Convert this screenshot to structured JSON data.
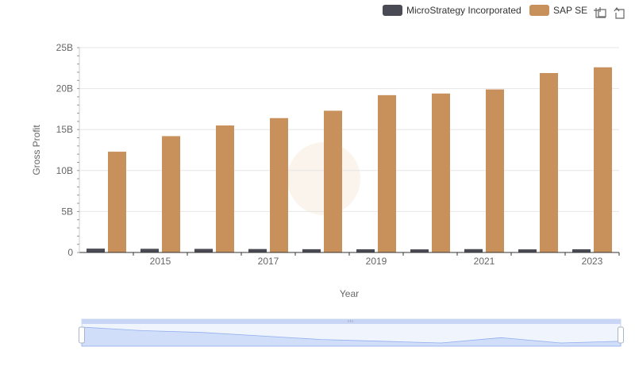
{
  "chart_data": {
    "type": "bar",
    "categories": [
      "2014",
      "2015",
      "2016",
      "2017",
      "2018",
      "2019",
      "2020",
      "2021",
      "2022",
      "2023"
    ],
    "x_tick_labels": [
      "2015",
      "2017",
      "2019",
      "2021",
      "2023"
    ],
    "xlabel": "Year",
    "ylabel": "Gross Profit",
    "ylim": [
      0,
      25
    ],
    "y_ticks": [
      0,
      5,
      10,
      15,
      20,
      25
    ],
    "y_tick_labels": [
      "0",
      "5B",
      "10B",
      "15B",
      "20B",
      "25B"
    ],
    "y_unit": "billions",
    "grid": true,
    "legend_position": "top-right",
    "series": [
      {
        "name": "MicroStrategy Incorporated",
        "color": "#4a4a55",
        "values": [
          0.47,
          0.45,
          0.44,
          0.42,
          0.4,
          0.39,
          0.38,
          0.41,
          0.38,
          0.39
        ]
      },
      {
        "name": "SAP SE",
        "color": "#c8915c",
        "values": [
          12.3,
          14.2,
          15.5,
          16.4,
          17.3,
          19.2,
          19.4,
          19.9,
          21.9,
          22.6
        ]
      }
    ]
  },
  "toolbar": {
    "zoom_icon": "zoom-area-icon",
    "reset_icon": "restore-icon"
  },
  "data_zoom": {
    "range_start": 0,
    "range_end": 100,
    "handle_icon": "drag-handle-icon"
  }
}
